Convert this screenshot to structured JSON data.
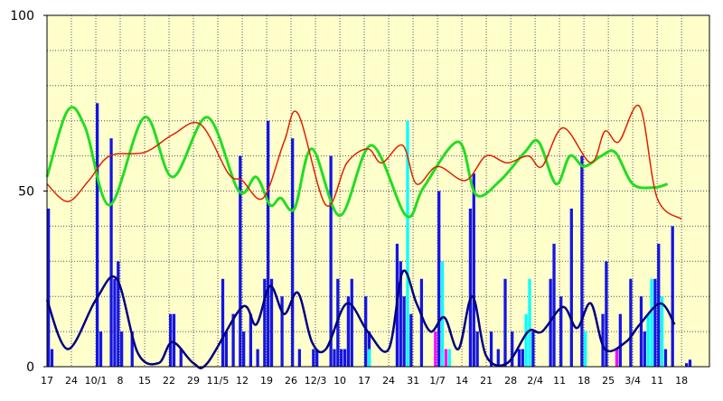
{
  "chart_data": {
    "type": "combo",
    "xlim": [
      0,
      190
    ],
    "ylim": [
      0,
      100
    ],
    "yticks": [
      0,
      50,
      100
    ],
    "ygrid": [
      10,
      20,
      30,
      40,
      50,
      60,
      70,
      80,
      90
    ],
    "xticks": [
      {
        "value": 0,
        "label": "17"
      },
      {
        "value": 7,
        "label": "24"
      },
      {
        "value": 14,
        "label": "10/1"
      },
      {
        "value": 21,
        "label": "8"
      },
      {
        "value": 28,
        "label": "15"
      },
      {
        "value": 35,
        "label": "22"
      },
      {
        "value": 42,
        "label": "29"
      },
      {
        "value": 49,
        "label": "11/5"
      },
      {
        "value": 56,
        "label": "12"
      },
      {
        "value": 63,
        "label": "19"
      },
      {
        "value": 70,
        "label": "26"
      },
      {
        "value": 77,
        "label": "12/3"
      },
      {
        "value": 84,
        "label": "10"
      },
      {
        "value": 91,
        "label": "17"
      },
      {
        "value": 98,
        "label": "24"
      },
      {
        "value": 105,
        "label": "31"
      },
      {
        "value": 112,
        "label": "1/7"
      },
      {
        "value": 119,
        "label": "14"
      },
      {
        "value": 126,
        "label": "21"
      },
      {
        "value": 133,
        "label": "28"
      },
      {
        "value": 140,
        "label": "2/4"
      },
      {
        "value": 147,
        "label": "11"
      },
      {
        "value": 154,
        "label": "18"
      },
      {
        "value": 161,
        "label": "25"
      },
      {
        "value": 168,
        "label": "3/4"
      },
      {
        "value": 175,
        "label": "11"
      },
      {
        "value": 182,
        "label": "18"
      }
    ],
    "grid": true,
    "background": "#ffffcc",
    "series": [
      {
        "type": "bar",
        "color": "#1414e6",
        "x": [
          0,
          1,
          14,
          15,
          18,
          19,
          20,
          21,
          24,
          35,
          36,
          38,
          50,
          51,
          53,
          55,
          56,
          58,
          60,
          62,
          63,
          64,
          67,
          70,
          72,
          76,
          77,
          81,
          82,
          83,
          84,
          85,
          86,
          87,
          91,
          92,
          100,
          101,
          102,
          104,
          107,
          112,
          121,
          122,
          123,
          127,
          129,
          131,
          133,
          135,
          136,
          139,
          144,
          145,
          147,
          150,
          153,
          159,
          160,
          164,
          167,
          170,
          171,
          174,
          175,
          177,
          179,
          183,
          184
        ],
        "values": [
          45,
          5,
          75,
          10,
          65,
          25,
          30,
          10,
          10,
          15,
          15,
          5,
          25,
          10,
          15,
          60,
          10,
          15,
          5,
          25,
          70,
          25,
          20,
          65,
          5,
          5,
          5,
          60,
          5,
          25,
          5,
          5,
          20,
          25,
          20,
          10,
          35,
          30,
          20,
          15,
          25,
          50,
          45,
          55,
          10,
          10,
          5,
          25,
          10,
          5,
          5,
          10,
          25,
          35,
          20,
          45,
          60,
          15,
          30,
          15,
          25,
          20,
          10,
          25,
          35,
          5,
          40,
          1,
          2
        ]
      },
      {
        "type": "bar",
        "color": "#00ffff",
        "x": [
          92,
          103,
          113,
          115,
          137,
          138,
          154,
          172,
          173,
          176
        ],
        "values": [
          5,
          70,
          30,
          5,
          15,
          25,
          10,
          15,
          25,
          20
        ]
      },
      {
        "type": "bar",
        "color": "#ff00ff",
        "x": [
          111,
          114,
          163
        ],
        "values": [
          10,
          5,
          5
        ]
      },
      {
        "type": "line",
        "color": "#22dd22",
        "width": 3,
        "x": [
          0,
          6,
          11,
          18,
          28,
          36,
          46,
          55,
          60,
          64,
          67,
          71,
          76,
          84,
          93,
          103,
          108,
          118,
          123,
          130,
          137,
          141,
          146,
          150,
          154,
          159,
          163,
          168,
          174,
          178
        ],
        "values": [
          54,
          73,
          68,
          46,
          71,
          54,
          71,
          50,
          54,
          46,
          48,
          45,
          62,
          43,
          63,
          43,
          51,
          64,
          49,
          53,
          61,
          64,
          52,
          60,
          57,
          60,
          61,
          52,
          51,
          52
        ]
      },
      {
        "type": "line",
        "color": "#dd2200",
        "width": 1.5,
        "x": [
          0,
          6,
          12,
          18,
          28,
          36,
          44,
          52,
          56,
          62,
          68,
          72,
          80,
          86,
          92,
          96,
          102,
          106,
          112,
          120,
          126,
          132,
          138,
          142,
          148,
          156,
          160,
          164,
          170,
          175,
          182
        ],
        "values": [
          52,
          47,
          53,
          60,
          61,
          66,
          69,
          55,
          53,
          48,
          64,
          72,
          46,
          58,
          62,
          58,
          63,
          52,
          57,
          53,
          60,
          58,
          60,
          57,
          68,
          58,
          67,
          64,
          74,
          48,
          42
        ]
      },
      {
        "type": "line",
        "color": "#000080",
        "width": 2.5,
        "x": [
          0,
          6,
          14,
          20,
          26,
          32,
          36,
          42,
          46,
          56,
          60,
          64,
          68,
          72,
          76,
          80,
          86,
          92,
          98,
          102,
          106,
          110,
          114,
          118,
          122,
          126,
          132,
          138,
          142,
          148,
          152,
          156,
          160,
          166,
          170,
          176,
          180
        ],
        "values": [
          19,
          5,
          19,
          25,
          4,
          1,
          7,
          1,
          1,
          17,
          12,
          23,
          15,
          21,
          7,
          5,
          18,
          10,
          5,
          27,
          18,
          10,
          14,
          5,
          20,
          3,
          1,
          10,
          10,
          17,
          11,
          18,
          5,
          7,
          12,
          18,
          12
        ]
      }
    ]
  }
}
